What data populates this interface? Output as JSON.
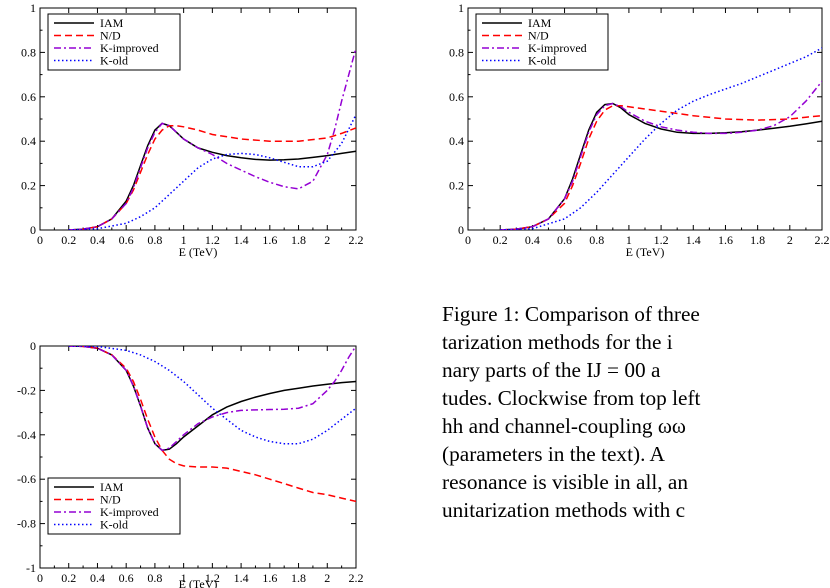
{
  "panels": [
    {
      "xlabel": "E (TeV)",
      "ylim": [
        0,
        1
      ],
      "xticks": [
        "0",
        "0.2",
        "0.4",
        "0.6",
        "0.8",
        "1",
        "1.2",
        "1.4",
        "1.6",
        "1.8",
        "2",
        "2.2"
      ],
      "yticks": [
        {
          "v": 0,
          "label": "0"
        },
        {
          "v": 0.2,
          "label": "0.2"
        },
        {
          "v": 0.4,
          "label": "0.4"
        },
        {
          "v": 0.6,
          "label": "0.6"
        },
        {
          "v": 0.8,
          "label": "0.8"
        },
        {
          "v": 1,
          "label": "1"
        }
      ],
      "legend": "top-left",
      "legend_labels": [
        "IAM",
        "N/D",
        "K-improved",
        "K-old"
      ]
    },
    {
      "xlabel": "E (TeV)",
      "ylim": [
        0,
        1
      ],
      "xticks": [
        "0",
        "0.2",
        "0.4",
        "0.6",
        "0.8",
        "1",
        "1.2",
        "1.4",
        "1.6",
        "1.8",
        "2",
        "2.2"
      ],
      "yticks": [
        {
          "v": 0,
          "label": "0"
        },
        {
          "v": 0.2,
          "label": "0.2"
        },
        {
          "v": 0.4,
          "label": "0.4"
        },
        {
          "v": 0.6,
          "label": "0.6"
        },
        {
          "v": 0.8,
          "label": "0.8"
        },
        {
          "v": 1,
          "label": "1"
        }
      ],
      "legend": "top-left",
      "legend_labels": [
        "IAM",
        "N/D",
        "K-improved",
        "K-old"
      ]
    },
    {
      "xlabel": "E (TeV)",
      "ylim": [
        -1,
        0
      ],
      "xticks": [
        "0",
        "0.2",
        "0.4",
        "0.6",
        "0.8",
        "1",
        "1.2",
        "1.4",
        "1.6",
        "1.8",
        "2",
        "2.2"
      ],
      "yticks": [
        {
          "v": 0,
          "label": "0"
        },
        {
          "v": -0.2,
          "label": "-0.2"
        },
        {
          "v": -0.4,
          "label": "-0.4"
        },
        {
          "v": -0.6,
          "label": "-0.6"
        },
        {
          "v": -0.8,
          "label": "-0.8"
        },
        {
          "v": -1,
          "label": "-1"
        }
      ],
      "legend": "bottom-left",
      "legend_labels": [
        "IAM",
        "N/D",
        "K-improved",
        "K-old"
      ]
    }
  ],
  "chart_data": [
    {
      "type": "line",
      "xlabel": "E (TeV)",
      "xlim": [
        0,
        2.2
      ],
      "ylim": [
        0,
        1
      ],
      "grid": false,
      "legend": "top-left",
      "series": [
        {
          "name": "IAM",
          "color": "#000000",
          "style": "solid",
          "x": [
            0.2,
            0.3,
            0.4,
            0.5,
            0.6,
            0.65,
            0.7,
            0.75,
            0.8,
            0.85,
            0.9,
            0.95,
            1.0,
            1.1,
            1.2,
            1.3,
            1.4,
            1.5,
            1.6,
            1.7,
            1.8,
            1.9,
            2.0,
            2.1,
            2.2
          ],
          "y": [
            0.0,
            0.004,
            0.015,
            0.05,
            0.13,
            0.2,
            0.29,
            0.38,
            0.45,
            0.48,
            0.47,
            0.44,
            0.41,
            0.37,
            0.35,
            0.335,
            0.325,
            0.318,
            0.315,
            0.316,
            0.32,
            0.327,
            0.335,
            0.345,
            0.355
          ]
        },
        {
          "name": "N/D",
          "color": "#ff0000",
          "style": "dashed",
          "x": [
            0.2,
            0.3,
            0.4,
            0.5,
            0.6,
            0.65,
            0.7,
            0.75,
            0.8,
            0.85,
            0.9,
            0.95,
            1.0,
            1.1,
            1.2,
            1.4,
            1.6,
            1.8,
            2.0,
            2.1,
            2.2
          ],
          "y": [
            0.0,
            0.004,
            0.015,
            0.05,
            0.12,
            0.18,
            0.26,
            0.34,
            0.41,
            0.45,
            0.47,
            0.47,
            0.465,
            0.45,
            0.43,
            0.41,
            0.4,
            0.4,
            0.415,
            0.435,
            0.46
          ]
        },
        {
          "name": "K-improved",
          "color": "#9400d3",
          "style": "dashdot",
          "x": [
            0.2,
            0.3,
            0.4,
            0.5,
            0.6,
            0.65,
            0.7,
            0.75,
            0.8,
            0.85,
            0.9,
            0.95,
            1.0,
            1.1,
            1.2,
            1.3,
            1.4,
            1.5,
            1.6,
            1.7,
            1.8,
            1.9,
            2.0,
            2.05,
            2.1,
            2.15,
            2.2
          ],
          "y": [
            0.0,
            0.004,
            0.015,
            0.05,
            0.12,
            0.19,
            0.28,
            0.37,
            0.44,
            0.48,
            0.47,
            0.44,
            0.41,
            0.37,
            0.34,
            0.3,
            0.27,
            0.24,
            0.215,
            0.195,
            0.185,
            0.22,
            0.34,
            0.45,
            0.58,
            0.7,
            0.82
          ]
        },
        {
          "name": "K-old",
          "color": "#0000ff",
          "style": "dotted",
          "x": [
            0.2,
            0.4,
            0.6,
            0.7,
            0.8,
            0.9,
            1.0,
            1.1,
            1.2,
            1.3,
            1.4,
            1.5,
            1.6,
            1.7,
            1.8,
            1.9,
            2.0,
            2.1,
            2.2
          ],
          "y": [
            0.0,
            0.006,
            0.03,
            0.06,
            0.1,
            0.16,
            0.22,
            0.28,
            0.32,
            0.34,
            0.345,
            0.34,
            0.325,
            0.305,
            0.285,
            0.285,
            0.31,
            0.39,
            0.52
          ]
        }
      ]
    },
    {
      "type": "line",
      "xlabel": "E (TeV)",
      "xlim": [
        0,
        2.2
      ],
      "ylim": [
        0,
        1
      ],
      "grid": false,
      "legend": "top-left",
      "series": [
        {
          "name": "IAM",
          "color": "#000000",
          "style": "solid",
          "x": [
            0.2,
            0.3,
            0.4,
            0.5,
            0.6,
            0.65,
            0.7,
            0.75,
            0.8,
            0.85,
            0.9,
            0.95,
            1.0,
            1.1,
            1.2,
            1.3,
            1.4,
            1.5,
            1.6,
            1.7,
            1.8,
            1.9,
            2.0,
            2.1,
            2.2
          ],
          "y": [
            0.0,
            0.004,
            0.015,
            0.05,
            0.14,
            0.23,
            0.34,
            0.45,
            0.53,
            0.565,
            0.57,
            0.55,
            0.52,
            0.48,
            0.455,
            0.44,
            0.435,
            0.435,
            0.438,
            0.443,
            0.45,
            0.458,
            0.467,
            0.478,
            0.49
          ]
        },
        {
          "name": "N/D",
          "color": "#ff0000",
          "style": "dashed",
          "x": [
            0.2,
            0.3,
            0.4,
            0.5,
            0.6,
            0.65,
            0.7,
            0.75,
            0.8,
            0.85,
            0.9,
            0.95,
            1.0,
            1.1,
            1.2,
            1.4,
            1.6,
            1.8,
            2.0,
            2.1,
            2.2
          ],
          "y": [
            0.0,
            0.004,
            0.015,
            0.05,
            0.12,
            0.2,
            0.3,
            0.41,
            0.49,
            0.54,
            0.56,
            0.56,
            0.555,
            0.545,
            0.535,
            0.515,
            0.5,
            0.495,
            0.5,
            0.508,
            0.515
          ]
        },
        {
          "name": "K-improved",
          "color": "#9400d3",
          "style": "dashdot",
          "x": [
            0.2,
            0.3,
            0.4,
            0.5,
            0.6,
            0.65,
            0.7,
            0.75,
            0.8,
            0.85,
            0.9,
            0.95,
            1.0,
            1.1,
            1.2,
            1.3,
            1.4,
            1.5,
            1.6,
            1.7,
            1.8,
            1.9,
            2.0,
            2.1,
            2.2
          ],
          "y": [
            0.0,
            0.004,
            0.015,
            0.05,
            0.14,
            0.22,
            0.33,
            0.44,
            0.52,
            0.56,
            0.57,
            0.555,
            0.53,
            0.49,
            0.465,
            0.45,
            0.44,
            0.435,
            0.435,
            0.44,
            0.45,
            0.47,
            0.51,
            0.58,
            0.67
          ]
        },
        {
          "name": "K-old",
          "color": "#0000ff",
          "style": "dotted",
          "x": [
            0.2,
            0.4,
            0.6,
            0.7,
            0.8,
            0.9,
            1.0,
            1.1,
            1.2,
            1.3,
            1.4,
            1.5,
            1.6,
            1.7,
            1.8,
            1.9,
            2.0,
            2.1,
            2.2
          ],
          "y": [
            0.0,
            0.006,
            0.05,
            0.1,
            0.17,
            0.25,
            0.33,
            0.41,
            0.48,
            0.54,
            0.58,
            0.61,
            0.635,
            0.66,
            0.69,
            0.72,
            0.75,
            0.78,
            0.82
          ]
        }
      ]
    },
    {
      "type": "line",
      "xlabel": "E (TeV)",
      "xlim": [
        0,
        2.2
      ],
      "ylim": [
        -1,
        0
      ],
      "grid": false,
      "legend": "bottom-left",
      "series": [
        {
          "name": "IAM",
          "color": "#000000",
          "style": "solid",
          "x": [
            0.2,
            0.3,
            0.4,
            0.5,
            0.6,
            0.65,
            0.7,
            0.75,
            0.8,
            0.85,
            0.9,
            0.95,
            1.0,
            1.1,
            1.2,
            1.3,
            1.4,
            1.5,
            1.6,
            1.7,
            1.8,
            1.9,
            2.0,
            2.1,
            2.2
          ],
          "y": [
            0.0,
            -0.002,
            -0.01,
            -0.04,
            -0.11,
            -0.18,
            -0.27,
            -0.37,
            -0.44,
            -0.47,
            -0.465,
            -0.44,
            -0.41,
            -0.36,
            -0.31,
            -0.275,
            -0.25,
            -0.23,
            -0.214,
            -0.2,
            -0.19,
            -0.18,
            -0.172,
            -0.165,
            -0.16
          ]
        },
        {
          "name": "N/D",
          "color": "#ff0000",
          "style": "dashed",
          "x": [
            0.2,
            0.3,
            0.4,
            0.5,
            0.6,
            0.65,
            0.7,
            0.75,
            0.8,
            0.85,
            0.9,
            0.95,
            1.0,
            1.1,
            1.2,
            1.3,
            1.4,
            1.5,
            1.6,
            1.7,
            1.8,
            1.9,
            2.0,
            2.1,
            2.2
          ],
          "y": [
            0.0,
            -0.002,
            -0.01,
            -0.04,
            -0.1,
            -0.16,
            -0.24,
            -0.33,
            -0.41,
            -0.47,
            -0.51,
            -0.53,
            -0.54,
            -0.545,
            -0.545,
            -0.55,
            -0.565,
            -0.58,
            -0.6,
            -0.62,
            -0.64,
            -0.66,
            -0.67,
            -0.685,
            -0.7
          ]
        },
        {
          "name": "K-improved",
          "color": "#9400d3",
          "style": "dashdot",
          "x": [
            0.2,
            0.3,
            0.4,
            0.5,
            0.6,
            0.65,
            0.7,
            0.75,
            0.8,
            0.85,
            0.9,
            0.95,
            1.0,
            1.1,
            1.2,
            1.3,
            1.4,
            1.5,
            1.6,
            1.7,
            1.8,
            1.9,
            2.0,
            2.05,
            2.1,
            2.15,
            2.2
          ],
          "y": [
            0.0,
            -0.002,
            -0.01,
            -0.04,
            -0.11,
            -0.18,
            -0.27,
            -0.37,
            -0.44,
            -0.47,
            -0.46,
            -0.43,
            -0.4,
            -0.35,
            -0.32,
            -0.3,
            -0.29,
            -0.288,
            -0.286,
            -0.285,
            -0.28,
            -0.26,
            -0.2,
            -0.16,
            -0.11,
            -0.05,
            0.0
          ]
        },
        {
          "name": "K-old",
          "color": "#0000ff",
          "style": "dotted",
          "x": [
            0.2,
            0.4,
            0.6,
            0.7,
            0.8,
            0.9,
            1.0,
            1.1,
            1.2,
            1.3,
            1.4,
            1.5,
            1.6,
            1.7,
            1.8,
            1.9,
            2.0,
            2.1,
            2.2
          ],
          "y": [
            0.0,
            -0.002,
            -0.02,
            -0.04,
            -0.07,
            -0.11,
            -0.16,
            -0.22,
            -0.28,
            -0.33,
            -0.38,
            -0.41,
            -0.43,
            -0.44,
            -0.44,
            -0.42,
            -0.38,
            -0.33,
            -0.28
          ]
        }
      ]
    }
  ],
  "caption": {
    "lines": [
      "Figure 1:   Comparison of three",
      "tarization  methods  for  the  i",
      "nary parts of the IJ = 00 a",
      "tudes. Clockwise from top left",
      "hh and channel-coupling ωω",
      "(parameters in the text).  A",
      "resonance is visible in all, an",
      "unitarization methods with c"
    ]
  }
}
